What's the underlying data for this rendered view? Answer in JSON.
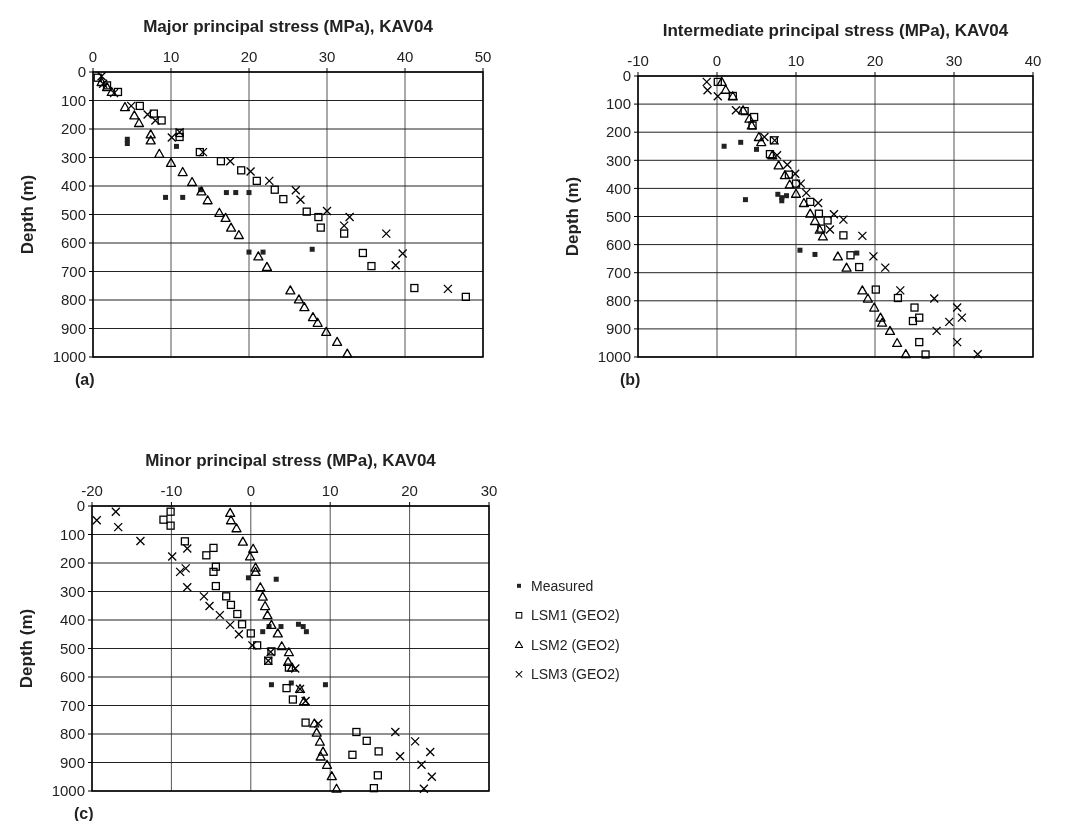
{
  "chart_data": [
    {
      "type": "scatter",
      "title": "Major principal stress (MPa), KAV04",
      "ylabel": "Depth (m)",
      "xlim": [
        0,
        50
      ],
      "xticks": [
        0,
        10,
        20,
        30,
        40,
        50
      ],
      "ylim": [
        1000,
        0
      ],
      "yticks": [
        0,
        100,
        200,
        300,
        400,
        500,
        600,
        700,
        800,
        900,
        1000
      ],
      "grid": true,
      "legend": false,
      "annotations": [
        "(a)"
      ],
      "series": [
        {
          "color": "#222222",
          "marker": "square",
          "x": [
            4.4,
            4.4,
            10.7,
            13.8,
            9.3,
            11.5,
            17.1,
            18.3,
            20.0,
            20.0,
            21.8,
            28.1
          ],
          "values": [
            236,
            251,
            261,
            413,
            440,
            440,
            423,
            423,
            423,
            632,
            632,
            622
          ]
        },
        {
          "color": "#000000",
          "marker": "square",
          "x": [
            0.6,
            1.8,
            3.2,
            6.0,
            7.8,
            8.8,
            11.1,
            11.1,
            13.7,
            16.4,
            19.0,
            21.0,
            23.3,
            24.4,
            27.4,
            28.9,
            29.2,
            32.2,
            34.6,
            35.7,
            41.2,
            47.8
          ],
          "values": [
            20,
            47,
            70,
            119,
            146,
            170,
            214,
            228,
            281,
            313,
            345,
            382,
            413,
            446,
            490,
            509,
            546,
            567,
            635,
            681,
            758,
            789
          ]
        },
        {
          "color": "#000000",
          "marker": "triangle",
          "x": [
            1.1,
            1.8,
            2.4,
            4.1,
            5.3,
            5.9,
            7.4,
            7.4,
            8.5,
            10.0,
            11.5,
            12.7,
            13.9,
            14.7,
            16.2,
            17.0,
            17.7,
            18.7,
            21.2,
            22.3,
            25.3,
            26.4,
            27.1,
            28.2,
            28.8,
            29.9,
            31.3,
            32.6
          ],
          "values": [
            35,
            53,
            70,
            123,
            152,
            179,
            219,
            240,
            287,
            319,
            351,
            386,
            419,
            450,
            494,
            512,
            546,
            572,
            647,
            684,
            766,
            798,
            825,
            860,
            880,
            912,
            947,
            988
          ]
        },
        {
          "color": "#000000",
          "marker": "cross",
          "x": [
            1.1,
            1.3,
            2.7,
            4.9,
            7.0,
            8.0,
            10.1,
            11.1,
            14.1,
            17.6,
            20.2,
            22.6,
            26.0,
            26.6,
            30.0,
            32.9,
            32.2,
            37.6,
            39.7,
            38.8,
            45.5
          ],
          "values": [
            15,
            41,
            74,
            119,
            149,
            170,
            230,
            211,
            281,
            313,
            349,
            382,
            415,
            448,
            488,
            509,
            539,
            567,
            637,
            678,
            761
          ]
        }
      ]
    },
    {
      "type": "scatter",
      "title": "Intermediate principal stress (MPa), KAV04",
      "ylabel": "Depth (m)",
      "xlim": [
        -10,
        40
      ],
      "xticks": [
        -10,
        0,
        10,
        20,
        30,
        40
      ],
      "ylim": [
        1000,
        0
      ],
      "yticks": [
        0,
        100,
        200,
        300,
        400,
        500,
        600,
        700,
        800,
        900,
        1000
      ],
      "grid": true,
      "legend": false,
      "annotations": [
        "(b)"
      ],
      "series": [
        {
          "color": "#222222",
          "marker": "square",
          "x": [
            0.9,
            3.0,
            5.0,
            3.6,
            7.7,
            8.2,
            8.8,
            8.2,
            10.5,
            12.4,
            17.7
          ],
          "values": [
            250,
            236,
            261,
            440,
            421,
            433,
            426,
            444,
            620,
            635,
            630
          ]
        },
        {
          "color": "#000000",
          "marker": "square",
          "x": [
            0.1,
            2.0,
            3.5,
            4.7,
            4.5,
            7.2,
            6.7,
            9.1,
            10.0,
            11.8,
            12.9,
            14.0,
            13.2,
            16.0,
            16.9,
            18.0,
            20.1,
            22.9,
            25.0,
            25.6,
            24.8,
            25.6,
            26.4
          ],
          "values": [
            21,
            71,
            125,
            146,
            176,
            229,
            278,
            351,
            383,
            448,
            490,
            514,
            543,
            567,
            638,
            680,
            760,
            790,
            824,
            860,
            872,
            947,
            991
          ]
        },
        {
          "color": "#000000",
          "marker": "triangle",
          "x": [
            0.6,
            1.1,
            2.0,
            3.3,
            4.1,
            4.4,
            5.3,
            5.6,
            7.0,
            7.8,
            8.6,
            9.2,
            10.0,
            11.0,
            11.8,
            12.4,
            13.0,
            13.4,
            15.3,
            16.4,
            18.4,
            19.1,
            19.9,
            20.7,
            20.9,
            21.9,
            22.8,
            23.9
          ],
          "values": [
            21,
            49,
            72,
            122,
            152,
            176,
            217,
            235,
            282,
            318,
            353,
            386,
            419,
            452,
            490,
            516,
            547,
            571,
            642,
            682,
            763,
            792,
            824,
            860,
            878,
            907,
            950,
            990
          ]
        },
        {
          "color": "#000000",
          "marker": "cross",
          "x": [
            -1.3,
            -1.2,
            0.1,
            2.4,
            6.0,
            7.3,
            7.6,
            8.9,
            9.9,
            10.6,
            11.3,
            12.8,
            14.8,
            16.0,
            14.3,
            18.4,
            19.8,
            21.3,
            23.2,
            27.5,
            30.4,
            31.0,
            29.4,
            27.8,
            30.4,
            33.0
          ],
          "values": [
            21,
            51,
            72,
            122,
            217,
            229,
            282,
            316,
            348,
            383,
            416,
            452,
            492,
            511,
            546,
            569,
            642,
            682,
            763,
            792,
            824,
            860,
            875,
            907,
            947,
            990
          ]
        }
      ]
    },
    {
      "type": "scatter",
      "title": "Minor principal stress (MPa), KAV04",
      "ylabel": "Depth (m)",
      "xlim": [
        -20,
        30
      ],
      "xticks": [
        -20,
        -10,
        0,
        10,
        20,
        30
      ],
      "ylim": [
        1000,
        0
      ],
      "yticks": [
        0,
        100,
        200,
        300,
        400,
        500,
        600,
        700,
        800,
        900,
        1000
      ],
      "grid": true,
      "legend": "right",
      "annotations": [
        "(c)"
      ],
      "series": [
        {
          "name": "Measured",
          "color": "#222222",
          "marker": "square",
          "x": [
            -0.3,
            3.2,
            1.5,
            2.3,
            3.8,
            6.0,
            6.6,
            7.0,
            2.6,
            5.1,
            9.4
          ],
          "values": [
            252,
            257,
            441,
            423,
            423,
            415,
            423,
            441,
            627,
            621,
            627
          ]
        },
        {
          "name": "LSM1 (GEO2)",
          "color": "#000000",
          "marker": "square",
          "x": [
            -10.1,
            -11.0,
            -10.1,
            -8.3,
            -4.7,
            -5.6,
            -4.4,
            -4.7,
            -4.4,
            -3.1,
            -2.5,
            -1.7,
            -1.1,
            0.0,
            0.8,
            2.6,
            2.2,
            4.8,
            4.5,
            5.3,
            6.9,
            13.3,
            14.6,
            12.8,
            16.1,
            16.0,
            15.5
          ],
          "values": [
            20,
            48,
            69,
            124,
            147,
            173,
            213,
            231,
            281,
            317,
            347,
            379,
            415,
            447,
            489,
            510,
            543,
            567,
            639,
            679,
            760,
            793,
            824,
            873,
            861,
            945,
            990
          ]
        },
        {
          "name": "LSM2 (GEO2)",
          "color": "#000000",
          "marker": "triangle",
          "x": [
            -2.6,
            -2.5,
            -1.8,
            -1.0,
            0.3,
            -0.1,
            0.6,
            0.6,
            1.2,
            1.5,
            1.8,
            2.1,
            2.6,
            3.4,
            3.9,
            4.8,
            4.7,
            5.2,
            6.2,
            6.7,
            8.0,
            8.3,
            8.7,
            9.1,
            8.8,
            9.6,
            10.2,
            10.8
          ],
          "values": [
            24,
            50,
            78,
            125,
            150,
            177,
            216,
            231,
            285,
            318,
            351,
            383,
            417,
            447,
            492,
            513,
            547,
            567,
            642,
            685,
            763,
            795,
            827,
            862,
            879,
            908,
            948,
            992
          ]
        },
        {
          "name": "LSM3 (GEO2)",
          "color": "#000000",
          "marker": "cross",
          "x": [
            -19.4,
            -17.0,
            -16.7,
            -13.9,
            -9.9,
            -8.0,
            -8.9,
            -8.2,
            -8.0,
            -5.9,
            -5.2,
            -3.9,
            -2.6,
            -1.5,
            0.2,
            2.5,
            2.2,
            5.6,
            6.2,
            6.9,
            8.5,
            18.2,
            20.7,
            22.6,
            18.8,
            21.5,
            22.8,
            21.8
          ],
          "values": [
            50,
            20,
            74,
            123,
            177,
            149,
            231,
            219,
            285,
            317,
            351,
            383,
            417,
            450,
            489,
            512,
            543,
            570,
            642,
            684,
            763,
            793,
            826,
            863,
            878,
            908,
            950,
            992
          ]
        }
      ]
    }
  ]
}
